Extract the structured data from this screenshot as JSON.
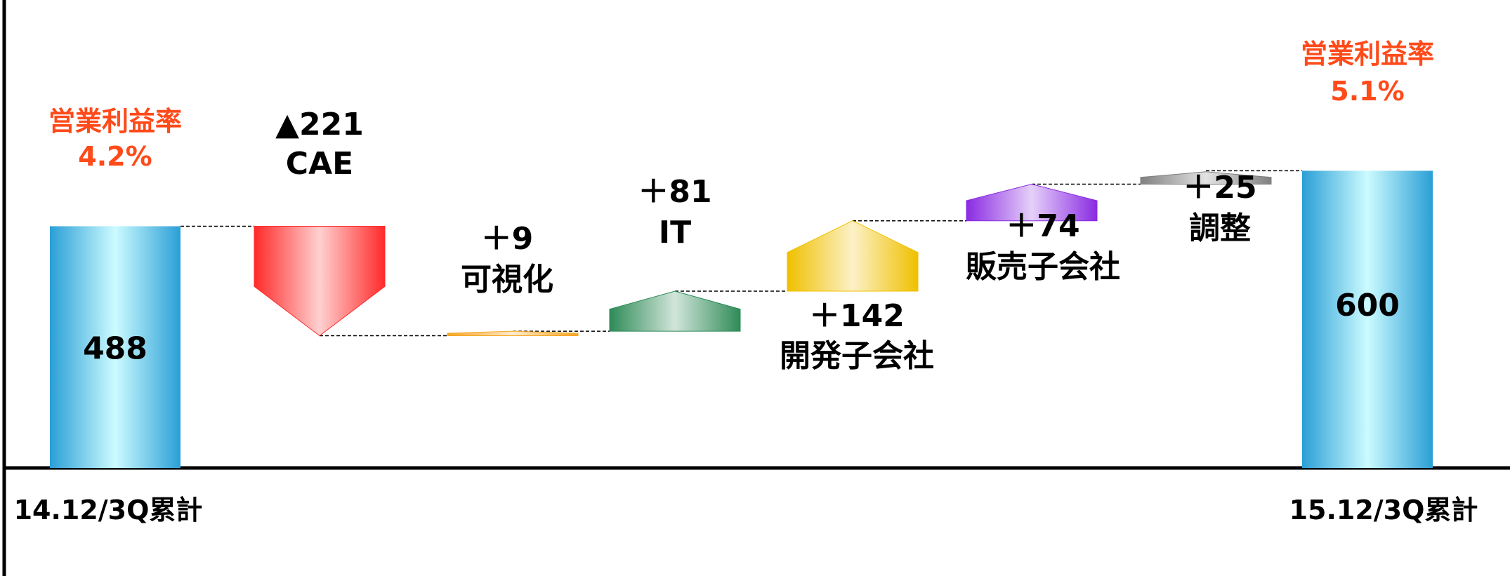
{
  "chart_data": {
    "type": "waterfall",
    "title": "",
    "xlabel": "",
    "ylabel": "",
    "ylim": [
      0,
      650
    ],
    "grid": false,
    "legend": "none",
    "start": {
      "category": "14.12/3Q累計",
      "value": 488,
      "value_label": "488",
      "ratio_title": "営業利益率",
      "ratio": "4.2%"
    },
    "end": {
      "category": "15.12/3Q累計",
      "value": 600,
      "value_label": "600",
      "ratio_title": "営業利益率",
      "ratio": "5.1%"
    },
    "steps": [
      {
        "name": "CAE",
        "value": -221,
        "value_label": "▲221",
        "color": "#ff2a2a"
      },
      {
        "name": "可視化",
        "value": 9,
        "value_label": "＋9",
        "color": "#f5a623"
      },
      {
        "name": "IT",
        "value": 81,
        "value_label": "＋81",
        "color": "#2e8b57"
      },
      {
        "name": "開発子会社",
        "value": 142,
        "value_label": "＋142",
        "color": "#f0c000"
      },
      {
        "name": "販売子会社",
        "value": 74,
        "value_label": "＋74",
        "color": "#8a2be2"
      },
      {
        "name": "調整",
        "value": 25,
        "value_label": "＋25",
        "color": "#808080"
      }
    ],
    "colors": {
      "total_bar": "#29a3d9",
      "ratio_text": "#ff4a1a",
      "axis": "#000000"
    }
  }
}
